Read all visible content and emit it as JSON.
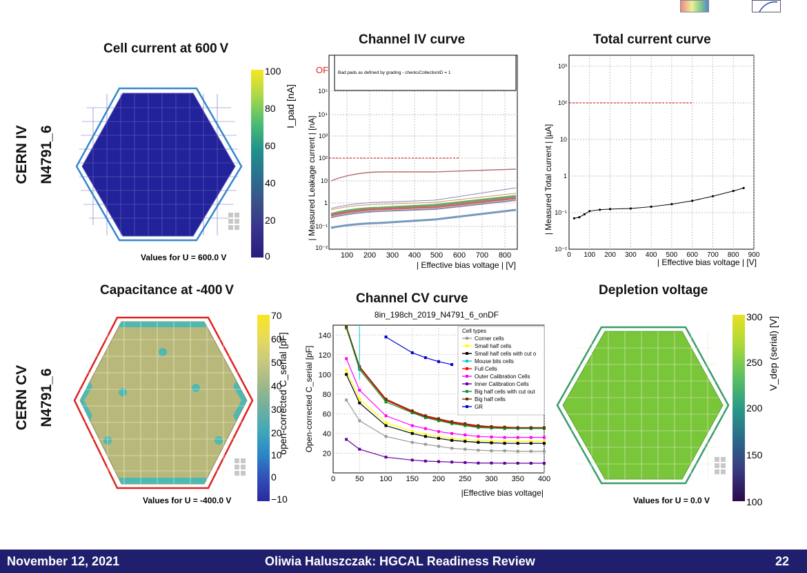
{
  "titles": {
    "cell_current": "Cell current at 600 V",
    "channel_iv": "Channel IV curve",
    "total_current": "Total current curve",
    "capacitance": "Capacitance at -400 V",
    "channel_cv": "Channel CV curve",
    "depletion": "Depletion voltage"
  },
  "row_labels": {
    "iv_line1": "CERN IV",
    "iv_line2": "N4791_6",
    "cv_line1": "CERN CV",
    "cv_line2": "N4791_6"
  },
  "captions": {
    "cell_current": "Values for U = 600.0 V",
    "capacitance": "Values for U = -400.0 V",
    "depletion": "Values for U = 0.0 V"
  },
  "colorbars": {
    "cell_current": {
      "ticks": [
        "100",
        "80",
        "60",
        "40",
        "20",
        "0"
      ],
      "label": "I_pad [nA]"
    },
    "capacitance": {
      "ticks": [
        "70",
        "60",
        "50",
        "40",
        "30",
        "20",
        "10",
        "0",
        "−10"
      ],
      "label": "open-corrected C_serial [pF]"
    },
    "depletion": {
      "ticks": [
        "300",
        "250",
        "200",
        "150",
        "100"
      ],
      "label": "V_dep (serial) [V]"
    }
  },
  "iv_plot": {
    "ylabel": "| Measured Leakage current | [nA]",
    "xlabel": "| Effective bias voltage | [V]",
    "of_marker": "OF",
    "annotation": "Bad pads as defined by grading - checksCollectionID = 1",
    "xticks": [
      "100",
      "200",
      "300",
      "400",
      "500",
      "600",
      "700",
      "800"
    ],
    "yticks": [
      "10⁻²",
      "10⁻¹",
      "1",
      "10",
      "10²",
      "10³",
      "10⁴",
      "10⁵"
    ]
  },
  "total_plot": {
    "ylabel": "| Measured Total current | [µA]",
    "xlabel": "| Effective bias voltage | [V]",
    "xticks": [
      "0",
      "100",
      "200",
      "300",
      "400",
      "500",
      "600",
      "700",
      "800",
      "900"
    ],
    "yticks": [
      "10⁻²",
      "10⁻¹",
      "1",
      "10",
      "10²",
      "10³"
    ]
  },
  "cv_plot": {
    "subtitle": "8in_198ch_2019_N4791_6_onDF",
    "ylabel": "Open-corrected C_serial [pF]",
    "xlabel": "|Effective bias voltage|",
    "legend_title": "Cell types",
    "legend": [
      "Corner cells",
      "Small half cells",
      "Small half cells with cut o",
      "Mouse bits cells",
      "Full Cells",
      "Outer Calibration Cells",
      "Inner Calibration Cells",
      "Big half cells with cut out",
      "Big half cells",
      "GR"
    ],
    "legend_colors": [
      "#999999",
      "#ffff00",
      "#000000",
      "#00cccc",
      "#ff0000",
      "#ff00ff",
      "#660099",
      "#009933",
      "#663300",
      "#0000cc"
    ],
    "xticks": [
      "0",
      "50",
      "100",
      "150",
      "200",
      "250",
      "300",
      "350",
      "400"
    ],
    "yticks": [
      "20",
      "40",
      "60",
      "80",
      "100",
      "120",
      "140"
    ]
  },
  "chart_data": [
    {
      "type": "line",
      "title": "Total current curve",
      "xlabel": "| Effective bias voltage | [V]",
      "ylabel": "| Measured Total current | [µA]",
      "log_y": true,
      "xlim": [
        0,
        900
      ],
      "ylim": [
        0.01,
        2000
      ],
      "series": [
        {
          "x": [
            25,
            50,
            75,
            100,
            150,
            200,
            300,
            400,
            500,
            600,
            700,
            800,
            850
          ],
          "y": [
            0.07,
            0.075,
            0.09,
            0.11,
            0.12,
            0.125,
            0.13,
            0.145,
            0.17,
            0.21,
            0.28,
            0.39,
            0.47
          ]
        }
      ],
      "threshold": {
        "y": 100,
        "x_range": [
          0,
          600
        ]
      }
    },
    {
      "type": "line",
      "title": "Channel CV curve",
      "xlabel": "|Effective bias voltage|",
      "ylabel": "Open-corrected C_serial [pF]",
      "xlim": [
        0,
        400
      ],
      "ylim": [
        0,
        150
      ],
      "x": [
        25,
        50,
        100,
        150,
        175,
        200,
        225,
        250,
        275,
        300,
        325,
        350,
        375,
        400
      ],
      "series": [
        {
          "name": "Corner cells",
          "values": [
            74,
            53,
            37,
            31,
            29,
            27,
            25,
            24,
            23,
            22.5,
            22.5,
            22,
            22,
            22
          ]
        },
        {
          "name": "Small half cells",
          "values": [
            104,
            75,
            51,
            42,
            39,
            37,
            35,
            34,
            33,
            32.5,
            32,
            32,
            32,
            32
          ]
        },
        {
          "name": "Small half cells with cut o",
          "values": [
            100,
            71,
            48,
            40,
            37,
            35,
            33,
            32,
            31,
            30.5,
            30,
            30,
            30,
            30
          ]
        },
        {
          "name": "Full Cells",
          "values": [
            148,
            107,
            74,
            62,
            57,
            54,
            51,
            49,
            47,
            46,
            46,
            45.5,
            45.5,
            45.5
          ]
        },
        {
          "name": "Outer Calibration Cells",
          "values": [
            116,
            84,
            58,
            48,
            45,
            42,
            40,
            38.5,
            37,
            36.5,
            36,
            36,
            36,
            36
          ]
        },
        {
          "name": "Inner Calibration Cells",
          "values": [
            34,
            24,
            16,
            13,
            12,
            11.5,
            11,
            10.5,
            10,
            10,
            9.8,
            9.8,
            9.8,
            9.8
          ]
        },
        {
          "name": "Big half cells with cut out",
          "values": [
            147,
            105,
            72,
            61,
            56,
            53,
            50,
            48,
            46,
            45.5,
            45,
            45,
            45,
            45
          ]
        },
        {
          "name": "Big half cells",
          "values": [
            149,
            108,
            75,
            63,
            58,
            55,
            52,
            50,
            48,
            47,
            46.5,
            46,
            46,
            46
          ]
        },
        {
          "name": "GR",
          "values": [
            null,
            null,
            138,
            122,
            117,
            113,
            110,
            null,
            null,
            null,
            null,
            null,
            null,
            null
          ]
        }
      ]
    }
  ],
  "footer": {
    "date": "November 12, 2021",
    "title": "Oliwia Haluszczak: HGCAL Readiness Review",
    "page": "22"
  }
}
